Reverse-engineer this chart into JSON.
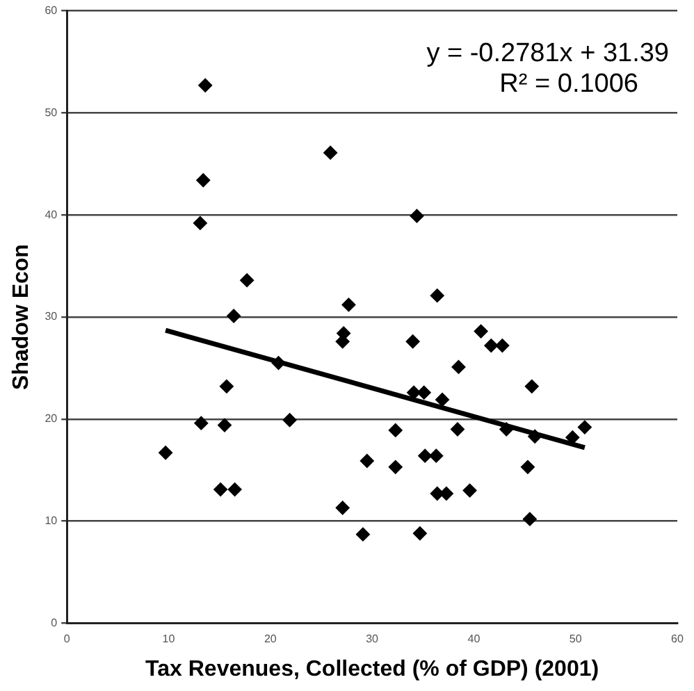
{
  "chart_data": {
    "type": "scatter",
    "xlabel": "Tax Revenues, Collected (% of GDP) (2001)",
    "ylabel": "Shadow Econ",
    "annotations": [
      "y = -0.2781x + 31.39",
      "R² = 0.1006"
    ],
    "xlim": [
      0,
      60
    ],
    "xticks": [
      0,
      10,
      20,
      30,
      40,
      50,
      60
    ],
    "ylim": [
      0,
      60
    ],
    "yticks": [
      0,
      10,
      20,
      30,
      40,
      50,
      60
    ],
    "grid": "y",
    "legend": false,
    "marker": "diamond",
    "series": [
      {
        "color": "#000000",
        "x": [
          9.7,
          13.6,
          13.4,
          13.1,
          17.7,
          16.4,
          25.9,
          13.2,
          15.5,
          15.7,
          15.1,
          16.5,
          20.8,
          21.9,
          27.1,
          29.1,
          29.5,
          32.3,
          32.3,
          34.7,
          35.2,
          36.3,
          36.4,
          37.3,
          39.6,
          38.4,
          34.1,
          35.1,
          36.9,
          38.5,
          45.7,
          43.2,
          46.0,
          45.3,
          45.5,
          49.7,
          50.9,
          34.4,
          36.4,
          27.7,
          27.2,
          27.1,
          34.0,
          40.7,
          41.7,
          42.8
        ],
        "values": [
          16.7,
          52.7,
          43.4,
          39.2,
          33.6,
          30.1,
          46.1,
          19.6,
          19.4,
          23.2,
          13.1,
          13.1,
          25.5,
          19.9,
          11.3,
          8.7,
          15.9,
          15.3,
          18.9,
          8.8,
          16.4,
          16.4,
          12.7,
          12.7,
          13.0,
          19.0,
          22.6,
          22.6,
          21.9,
          25.1,
          23.2,
          19.0,
          18.3,
          15.3,
          10.2,
          18.2,
          19.2,
          39.9,
          32.1,
          31.2,
          28.4,
          27.6,
          27.6,
          28.6,
          27.2,
          27.2
        ]
      },
      {
        "type": "line",
        "color": "#000000",
        "marker": "none",
        "x": [
          9.7,
          50.9
        ],
        "values": [
          28.7,
          17.2
        ]
      }
    ]
  }
}
